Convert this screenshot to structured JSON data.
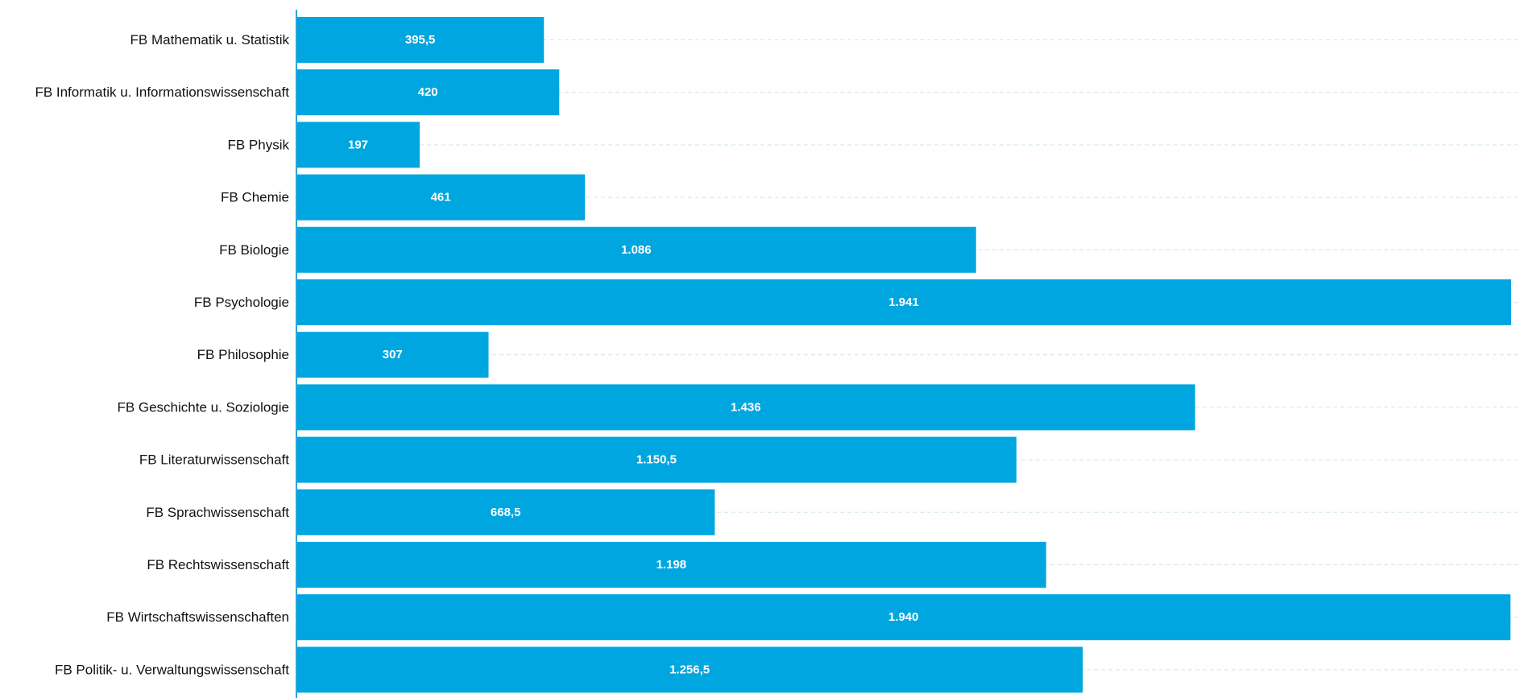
{
  "chart_data": {
    "type": "bar",
    "orientation": "horizontal",
    "categories": [
      "FB Mathematik u. Statistik",
      "FB Informatik u. Informationswissenschaft",
      "FB Physik",
      "FB Chemie",
      "FB Biologie",
      "FB Psychologie",
      "FB Philosophie",
      "FB Geschichte u. Soziologie",
      "FB Literaturwissenschaft",
      "FB Sprachwissenschaft",
      "FB Rechtswissenschaft",
      "FB Wirtschaftswissenschaften",
      "FB Politik- u. Verwaltungswissenschaft"
    ],
    "values": [
      395.5,
      420,
      197,
      461,
      1086,
      1941,
      307,
      1436,
      1150.5,
      668.5,
      1198,
      1940,
      1256.5
    ],
    "value_labels": [
      "395,5",
      "420",
      "197",
      "461",
      "1.086",
      "1.941",
      "307",
      "1.436",
      "1.150,5",
      "668,5",
      "1.198",
      "1.940",
      "1.256,5"
    ],
    "title": "",
    "xlabel": "",
    "ylabel": "",
    "xlim": [
      0,
      1941
    ],
    "grid": true,
    "legend": "none",
    "colors": {
      "bar": "#00a6df",
      "axis": "#2aa6d9",
      "grid": "#cfe6ea",
      "label": "#111111",
      "value_label": "#ffffff"
    }
  }
}
